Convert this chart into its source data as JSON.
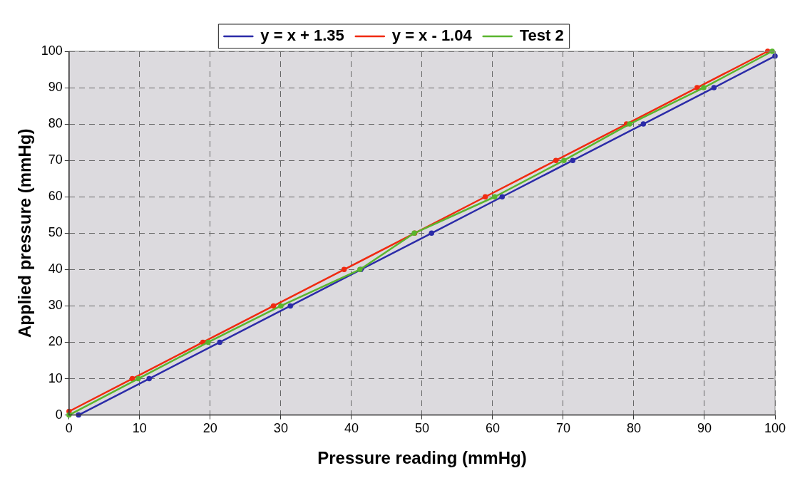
{
  "chart_data": {
    "type": "line",
    "xlabel": "Pressure reading (mmHg)",
    "ylabel": "Applied pressure (mmHg)",
    "xlim": [
      0,
      100
    ],
    "ylim": [
      0,
      100
    ],
    "xticks": [
      0,
      10,
      20,
      30,
      40,
      50,
      60,
      70,
      80,
      90,
      100
    ],
    "yticks": [
      0,
      10,
      20,
      30,
      40,
      50,
      60,
      70,
      80,
      90,
      100
    ],
    "grid": true,
    "legend": "top",
    "marker": "circle",
    "line_style": "solid",
    "series": [
      {
        "name": "y = x + 1.35",
        "color": "#2b2ba8",
        "x": [
          1.35,
          11.35,
          21.35,
          31.35,
          41.35,
          51.35,
          61.35,
          71.35,
          81.35,
          91.35,
          100
        ],
        "values": [
          0,
          10,
          20,
          30,
          40,
          50,
          60,
          70,
          80,
          90,
          98.7
        ]
      },
      {
        "name": "y = x - 1.04",
        "color": "#f02a10",
        "x": [
          0,
          8.96,
          18.96,
          28.96,
          38.96,
          48.96,
          58.96,
          68.96,
          78.96,
          88.96,
          98.96
        ],
        "values": [
          1,
          10,
          20,
          30,
          40,
          50,
          60,
          70,
          80,
          90,
          100
        ]
      },
      {
        "name": "Test 2",
        "color": "#5ab52e",
        "x": [
          0,
          9.8,
          19.7,
          30,
          41.2,
          48.9,
          60.3,
          70.1,
          79.4,
          89.9,
          99.6
        ],
        "values": [
          0,
          10,
          20,
          30,
          40,
          50,
          60,
          70,
          80,
          90,
          100
        ]
      }
    ]
  }
}
